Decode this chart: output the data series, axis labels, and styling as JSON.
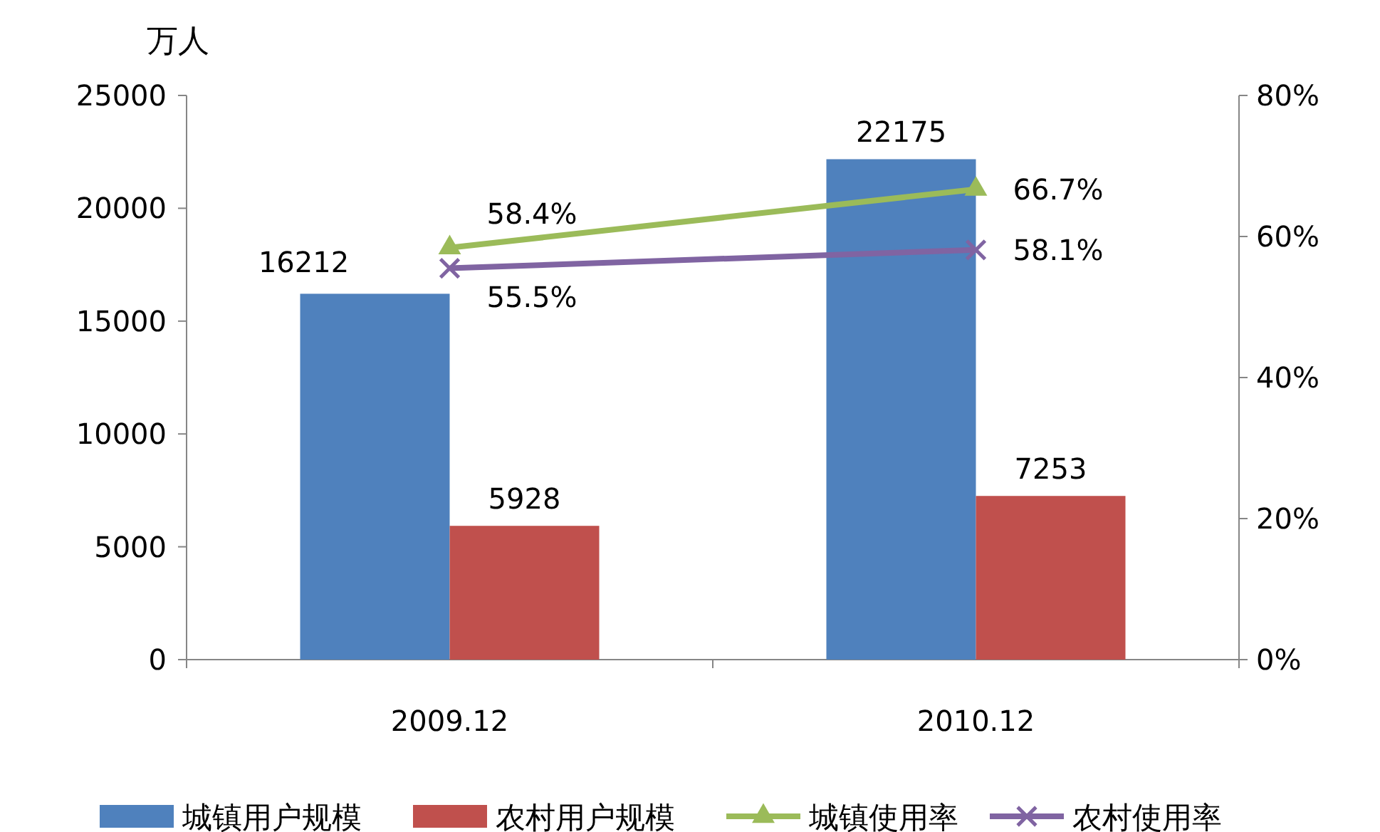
{
  "chart_data": {
    "type": "bar",
    "ylabel": "万人",
    "categories": [
      "2009.12",
      "2010.12"
    ],
    "series": [
      {
        "name": "城镇用户规模",
        "color": "#4f81bd",
        "values": [
          16212,
          22175
        ],
        "value_labels": [
          "16212",
          "22175"
        ]
      },
      {
        "name": "农村用户规模",
        "color": "#c0504d",
        "values": [
          5928,
          7253
        ],
        "value_labels": [
          "5928",
          "7253"
        ]
      },
      {
        "name": "城镇使用率",
        "type": "line",
        "axis": "y2",
        "marker": "triangle",
        "color": "#9bbb59",
        "values": [
          58.4,
          66.7
        ],
        "value_labels": [
          "58.4%",
          "66.7%"
        ]
      },
      {
        "name": "农村使用率",
        "type": "line",
        "axis": "y2",
        "marker": "cross",
        "color": "#8064a2",
        "values": [
          55.5,
          58.1
        ],
        "value_labels": [
          "55.5%",
          "58.1%"
        ]
      }
    ],
    "ylim": [
      0,
      25000
    ],
    "yticks": [
      0,
      5000,
      10000,
      15000,
      20000,
      25000
    ],
    "y2lim": [
      0,
      80
    ],
    "y2ticks": [
      {
        "value": 0,
        "label": "0%"
      },
      {
        "value": 20,
        "label": "20%"
      },
      {
        "value": 40,
        "label": "40%"
      },
      {
        "value": 60,
        "label": "60%"
      },
      {
        "value": 80,
        "label": "80%"
      }
    ],
    "legend": "bottom"
  }
}
